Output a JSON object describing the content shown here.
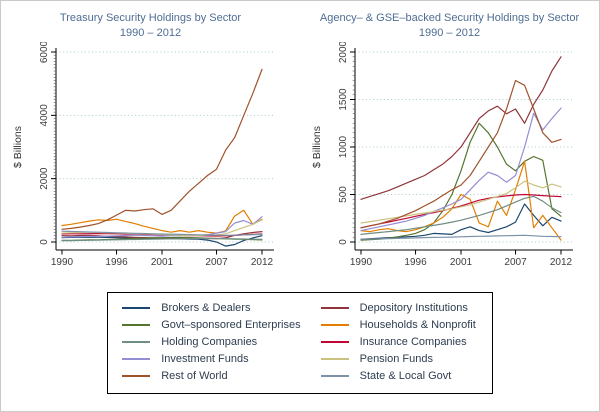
{
  "figure": {
    "background": "#ffffff",
    "border_color": "#c9c9c9",
    "title_color": "#4f6d93",
    "tick_label_color": "#3d3d3d",
    "axis_color": "#000000",
    "grid_color": "#a9cbc8",
    "legend_text_color": "#2e3d4f"
  },
  "chart_data": [
    {
      "type": "line",
      "title": "Treasury Security Holdings by Sector",
      "subtitle": "1990 – 2012",
      "ylabel": "$ Billions",
      "xlim": [
        1990,
        2012
      ],
      "ylim": [
        0,
        6000
      ],
      "yticks": [
        0,
        2000,
        4000,
        6000
      ],
      "xticks": [
        1990,
        1996,
        2001,
        2007,
        2012
      ],
      "minor_tick_step": 100,
      "grid": "dotted",
      "legend_position": "bottom-shared",
      "x": [
        1990,
        1991,
        1992,
        1993,
        1994,
        1995,
        1996,
        1997,
        1998,
        1999,
        2000,
        2001,
        2002,
        2003,
        2004,
        2005,
        2006,
        2007,
        2008,
        2009,
        2010,
        2011,
        2012
      ],
      "series": [
        {
          "name": "Brokers & Dealers",
          "color": "#1a476f",
          "values": [
            140,
            145,
            150,
            155,
            150,
            145,
            140,
            130,
            120,
            110,
            105,
            100,
            105,
            100,
            95,
            90,
            60,
            0,
            -130,
            -80,
            50,
            130,
            200
          ]
        },
        {
          "name": "Depository Institutions",
          "color": "#90353b",
          "values": [
            200,
            195,
            205,
            210,
            195,
            180,
            170,
            160,
            150,
            140,
            130,
            125,
            130,
            135,
            125,
            115,
            110,
            105,
            130,
            210,
            260,
            300,
            330
          ]
        },
        {
          "name": "Govt–sponsored Enterprises",
          "color": "#55752f",
          "values": [
            50,
            55,
            60,
            65,
            70,
            80,
            90,
            100,
            110,
            120,
            130,
            135,
            140,
            145,
            140,
            130,
            120,
            110,
            100,
            90,
            85,
            75,
            65
          ]
        },
        {
          "name": "Households & Nonprofit",
          "color": "#e37e00",
          "values": [
            520,
            560,
            610,
            660,
            700,
            680,
            720,
            650,
            580,
            500,
            430,
            360,
            310,
            360,
            310,
            360,
            310,
            280,
            350,
            820,
            1000,
            560,
            720
          ]
        },
        {
          "name": "Holding Companies",
          "color": "#6e8e84",
          "values": [
            40,
            45,
            50,
            55,
            60,
            65,
            70,
            75,
            80,
            85,
            90,
            95,
            100,
            105,
            110,
            112,
            115,
            112,
            108,
            100,
            95,
            88,
            82
          ]
        },
        {
          "name": "Insurance Companies",
          "color": "#c10534",
          "values": [
            255,
            258,
            260,
            262,
            265,
            262,
            258,
            252,
            246,
            240,
            232,
            224,
            216,
            208,
            202,
            198,
            194,
            190,
            196,
            208,
            224,
            240,
            252
          ]
        },
        {
          "name": "Investment Funds",
          "color": "#938dd2",
          "values": [
            150,
            160,
            170,
            180,
            175,
            185,
            195,
            205,
            215,
            205,
            195,
            185,
            195,
            205,
            215,
            205,
            230,
            280,
            330,
            600,
            680,
            560,
            800
          ]
        },
        {
          "name": "Pension Funds",
          "color": "#cac27e",
          "values": [
            280,
            290,
            300,
            310,
            300,
            290,
            285,
            275,
            265,
            255,
            245,
            235,
            225,
            215,
            205,
            205,
            215,
            225,
            260,
            360,
            460,
            560,
            700
          ]
        },
        {
          "name": "Rest of World",
          "color": "#a0522d",
          "values": [
            400,
            430,
            470,
            520,
            580,
            700,
            850,
            1000,
            980,
            1020,
            1050,
            870,
            1000,
            1300,
            1600,
            1850,
            2100,
            2300,
            2900,
            3300,
            4000,
            4700,
            5450
          ]
        },
        {
          "name": "State & Local Govt",
          "color": "#7b92a8",
          "values": [
            340,
            332,
            324,
            316,
            308,
            300,
            292,
            284,
            276,
            268,
            260,
            252,
            246,
            240,
            234,
            228,
            222,
            216,
            212,
            216,
            224,
            232,
            240
          ]
        }
      ]
    },
    {
      "type": "line",
      "title": "Agency– & GSE–backed Security Holdings by Sector",
      "subtitle": "1990 – 2012",
      "ylabel": "$ Billions",
      "xlim": [
        1990,
        2012
      ],
      "ylim": [
        0,
        2000
      ],
      "yticks": [
        0,
        500,
        1000,
        1500,
        2000
      ],
      "xticks": [
        1990,
        1996,
        2001,
        2007,
        2012
      ],
      "minor_tick_step": 50,
      "grid": "dotted",
      "legend_position": "bottom-shared",
      "x": [
        1990,
        1991,
        1992,
        1993,
        1994,
        1995,
        1996,
        1997,
        1998,
        1999,
        2000,
        2001,
        2002,
        2003,
        2004,
        2005,
        2006,
        2007,
        2008,
        2009,
        2010,
        2011,
        2012
      ],
      "series": [
        {
          "name": "Brokers & Dealers",
          "color": "#1a476f",
          "values": [
            30,
            35,
            40,
            45,
            50,
            55,
            60,
            70,
            90,
            85,
            80,
            130,
            160,
            120,
            100,
            130,
            160,
            210,
            400,
            280,
            170,
            260,
            220
          ]
        },
        {
          "name": "Depository Institutions",
          "color": "#90353b",
          "values": [
            450,
            480,
            510,
            540,
            580,
            620,
            660,
            700,
            760,
            820,
            900,
            1000,
            1150,
            1300,
            1380,
            1430,
            1350,
            1400,
            1250,
            1450,
            1600,
            1800,
            1950
          ]
        },
        {
          "name": "Govt–sponsored Enterprises",
          "color": "#55752f",
          "values": [
            20,
            25,
            30,
            40,
            55,
            70,
            90,
            130,
            200,
            330,
            500,
            750,
            1050,
            1250,
            1150,
            1000,
            820,
            750,
            850,
            900,
            860,
            350,
            270
          ]
        },
        {
          "name": "Households & Nonprofit",
          "color": "#e37e00",
          "values": [
            120,
            110,
            130,
            140,
            120,
            110,
            130,
            160,
            200,
            260,
            350,
            500,
            450,
            200,
            160,
            430,
            280,
            550,
            850,
            150,
            280,
            150,
            20
          ]
        },
        {
          "name": "Holding Companies",
          "color": "#6e8e84",
          "values": [
            80,
            90,
            100,
            110,
            120,
            130,
            145,
            160,
            175,
            190,
            210,
            230,
            255,
            280,
            310,
            340,
            380,
            420,
            460,
            480,
            430,
            360,
            310
          ]
        },
        {
          "name": "Insurance Companies",
          "color": "#c10534",
          "values": [
            150,
            170,
            190,
            210,
            230,
            250,
            270,
            290,
            310,
            330,
            355,
            380,
            410,
            440,
            460,
            475,
            485,
            495,
            500,
            495,
            488,
            482,
            478
          ]
        },
        {
          "name": "Investment Funds",
          "color": "#938dd2",
          "values": [
            120,
            140,
            160,
            180,
            200,
            220,
            250,
            280,
            320,
            360,
            400,
            450,
            550,
            650,
            735,
            700,
            630,
            700,
            1000,
            1355,
            1180,
            1300,
            1410
          ]
        },
        {
          "name": "Pension Funds",
          "color": "#cac27e",
          "values": [
            200,
            215,
            230,
            245,
            260,
            275,
            290,
            305,
            320,
            335,
            350,
            370,
            390,
            420,
            450,
            480,
            510,
            570,
            640,
            600,
            570,
            610,
            580
          ]
        },
        {
          "name": "Rest of World",
          "color": "#a0522d",
          "values": [
            150,
            170,
            190,
            220,
            250,
            290,
            330,
            380,
            430,
            490,
            550,
            600,
            700,
            850,
            1000,
            1150,
            1400,
            1700,
            1650,
            1400,
            1150,
            1050,
            1080
          ]
        },
        {
          "name": "State & Local Govt",
          "color": "#7b92a8",
          "values": [
            30,
            32,
            34,
            36,
            38,
            40,
            43,
            46,
            48,
            50,
            52,
            55,
            58,
            60,
            62,
            64,
            66,
            68,
            70,
            65,
            60,
            58,
            56
          ]
        }
      ]
    }
  ],
  "legend": {
    "column_order": [
      [
        0,
        2,
        4,
        6,
        8
      ],
      [
        1,
        3,
        5,
        7,
        9
      ]
    ]
  }
}
